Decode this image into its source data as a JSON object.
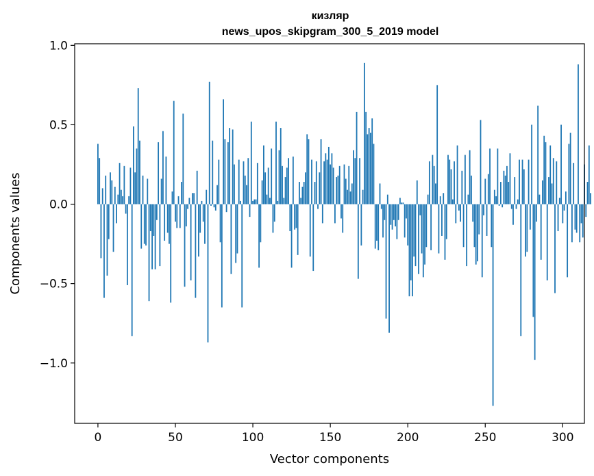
{
  "chart_data": {
    "type": "bar",
    "title_line1": "кизляр",
    "title_line2": "news_upos_skipgram_300_5_2019 model",
    "xlabel": "Vector components",
    "ylabel": "Components values",
    "xlim": [
      -15,
      314
    ],
    "ylim": [
      -1.38,
      1.01
    ],
    "xticks": [
      0,
      50,
      100,
      150,
      200,
      250,
      300
    ],
    "xtick_labels": [
      "0",
      "50",
      "100",
      "150",
      "200",
      "250",
      "300"
    ],
    "yticks": [
      -1.0,
      -0.5,
      0.0,
      0.5,
      1.0
    ],
    "ytick_labels": [
      "−1.0",
      "−0.5",
      "0.0",
      "0.5",
      "1.0"
    ],
    "color": "#1f77b4",
    "values": [
      0.38,
      0.29,
      -0.34,
      0.1,
      -0.59,
      0.18,
      -0.45,
      -0.22,
      0.2,
      0.15,
      -0.3,
      0.11,
      -0.12,
      0.06,
      0.26,
      0.09,
      0.05,
      0.24,
      -0.06,
      -0.51,
      0.05,
      0.23,
      -0.83,
      0.49,
      0.2,
      0.35,
      0.73,
      0.4,
      -0.28,
      0.18,
      -0.25,
      -0.26,
      0.16,
      -0.61,
      -0.17,
      -0.41,
      -0.2,
      -0.41,
      -0.1,
      0.39,
      -0.39,
      0.16,
      0.46,
      -0.23,
      0.3,
      -0.18,
      -0.25,
      -0.62,
      0.08,
      0.65,
      -0.11,
      -0.15,
      0.05,
      -0.15,
      0.14,
      0.57,
      -0.52,
      -0.14,
      -0.03,
      0.04,
      -0.48,
      0.07,
      0.07,
      -0.59,
      0.21,
      -0.33,
      -0.18,
      0.02,
      -0.11,
      -0.25,
      0.09,
      -0.87,
      0.77,
      -0.01,
      0.4,
      -0.02,
      -0.04,
      0.12,
      0.28,
      -0.24,
      -0.65,
      0.66,
      0.41,
      -0.05,
      0.39,
      0.48,
      -0.44,
      0.47,
      0.25,
      -0.37,
      -0.31,
      0.28,
      0.02,
      -0.65,
      0.27,
      0.18,
      0.12,
      0.29,
      -0.08,
      0.52,
      0.02,
      0.03,
      0.03,
      0.26,
      -0.4,
      -0.24,
      0.15,
      0.37,
      0.2,
      0.06,
      0.23,
      0.04,
      0.35,
      -0.18,
      -0.11,
      0.52,
      0.02,
      0.34,
      0.48,
      0.24,
      0.04,
      0.17,
      0.23,
      0.29,
      -0.17,
      -0.4,
      0.3,
      -0.16,
      -0.15,
      -0.32,
      0.14,
      0.04,
      0.11,
      0.14,
      0.2,
      0.44,
      0.41,
      -0.33,
      0.28,
      -0.42,
      0.14,
      0.27,
      -0.03,
      0.2,
      0.41,
      -0.12,
      0.27,
      0.32,
      0.28,
      0.36,
      0.25,
      0.32,
      0.23,
      -0.12,
      0.17,
      0.18,
      0.24,
      -0.09,
      -0.18,
      0.25,
      0.16,
      0.09,
      0.24,
      0.08,
      0.13,
      0.34,
      0.29,
      0.58,
      -0.47,
      0.29,
      -0.26,
      0.09,
      0.89,
      0.58,
      0.44,
      0.48,
      0.45,
      0.54,
      0.38,
      -0.28,
      -0.23,
      -0.29,
      0.13,
      -0.03,
      -0.21,
      -0.1,
      -0.72,
      0.06,
      -0.81,
      -0.13,
      -0.16,
      -0.1,
      -0.14,
      -0.22,
      -0.1,
      0.04,
      0.01,
      0.01,
      -0.21,
      -0.09,
      -0.26,
      -0.58,
      -0.48,
      -0.58,
      -0.33,
      -0.39,
      0.15,
      -0.44,
      -0.07,
      -0.31,
      -0.46,
      -0.38,
      -0.27,
      0.06,
      0.27,
      -0.29,
      0.31,
      0.24,
      0.13,
      0.75,
      -0.31,
      0.05,
      -0.2,
      0.07,
      -0.35,
      -0.22,
      0.31,
      0.28,
      0.22,
      0.03,
      0.27,
      -0.12,
      0.37,
      -0.04,
      -0.11,
      0.21,
      -0.27,
      0.31,
      -0.39,
      0.06,
      0.34,
      0.18,
      -0.11,
      -0.27,
      -0.38,
      -0.36,
      -0.19,
      0.53,
      -0.46,
      -0.07,
      0.16,
      -0.2,
      0.19,
      0.35,
      -0.27,
      -1.27,
      0.09,
      0.05,
      0.35,
      -0.01,
      0.14,
      -0.02,
      0.21,
      0.18,
      0.24,
      0.14,
      0.32,
      -0.03,
      -0.13,
      0.17,
      -0.03,
      0.03,
      0.28,
      -0.83,
      0.28,
      0.22,
      -0.33,
      -0.3,
      0.28,
      -0.16,
      0.5,
      -0.71,
      -0.98,
      -0.11,
      0.62,
      0.06,
      -0.35,
      0.15,
      0.43,
      0.39,
      -0.48,
      0.17,
      0.37,
      0.13,
      0.29,
      -0.56,
      0.27,
      -0.17,
      0.04,
      0.5,
      -0.12,
      -0.04,
      0.08,
      -0.46,
      0.38,
      0.45,
      -0.24,
      0.26,
      -0.16,
      -0.18,
      0.88,
      -0.24,
      -0.12,
      -0.21,
      0.25,
      -0.08,
      0.14,
      0.37,
      0.07
    ]
  }
}
